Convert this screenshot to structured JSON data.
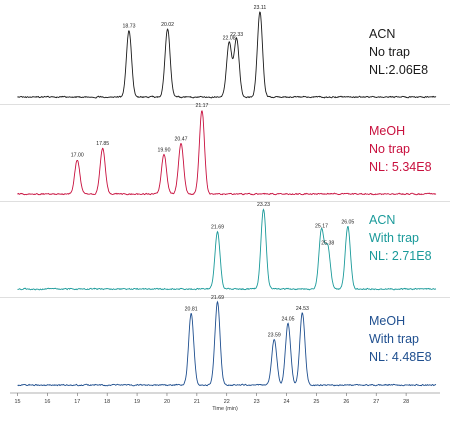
{
  "chart_data": {
    "type": "line",
    "xlabel": "Time (min)",
    "xlim": [
      15,
      29
    ],
    "x_ticks": [
      "15",
      "16",
      "17",
      "18",
      "19",
      "20",
      "21",
      "22",
      "23",
      "24",
      "25",
      "26",
      "27",
      "28"
    ],
    "grid": false,
    "panels": [
      {
        "color": "#1a1a1a",
        "legend": [
          "ACN",
          "No trap",
          "NL:2.06E8"
        ],
        "peaks": [
          {
            "label": "18.73",
            "x": 18.73,
            "y": 0.78
          },
          {
            "label": "20.02",
            "x": 20.02,
            "y": 0.8
          },
          {
            "label": "22.08",
            "x": 22.08,
            "y": 0.64
          },
          {
            "label": "22.33",
            "x": 22.33,
            "y": 0.68
          },
          {
            "label": "23.11",
            "x": 23.11,
            "y": 1.0
          }
        ]
      },
      {
        "color": "#c8103e",
        "legend": [
          "MeOH",
          "No trap",
          "NL: 5.34E8"
        ],
        "peaks": [
          {
            "label": "17.00",
            "x": 17.0,
            "y": 0.41
          },
          {
            "label": "17.85",
            "x": 17.85,
            "y": 0.55
          },
          {
            "label": "19.90",
            "x": 19.9,
            "y": 0.47
          },
          {
            "label": "20.47",
            "x": 20.47,
            "y": 0.6
          },
          {
            "label": "21.17",
            "x": 21.17,
            "y": 1.0
          }
        ]
      },
      {
        "color": "#1a9a9a",
        "legend": [
          "ACN",
          "With trap",
          "NL: 2.71E8"
        ],
        "peaks": [
          {
            "label": "21.69",
            "x": 21.69,
            "y": 0.72
          },
          {
            "label": "23.23",
            "x": 23.23,
            "y": 1.0
          },
          {
            "label": "25.17",
            "x": 25.17,
            "y": 0.73
          },
          {
            "label": "25.38",
            "x": 25.38,
            "y": 0.52
          },
          {
            "label": "26.05",
            "x": 26.05,
            "y": 0.78
          }
        ]
      },
      {
        "color": "#1f4f8f",
        "legend": [
          "MeOH",
          "With trap",
          "NL: 4.48E8"
        ],
        "peaks": [
          {
            "label": "20.81",
            "x": 20.81,
            "y": 0.86
          },
          {
            "label": "21.69",
            "x": 21.69,
            "y": 1.0
          },
          {
            "label": "23.59",
            "x": 23.59,
            "y": 0.55
          },
          {
            "label": "24.05",
            "x": 24.05,
            "y": 0.74
          },
          {
            "label": "24.53",
            "x": 24.53,
            "y": 0.87
          }
        ]
      }
    ]
  }
}
